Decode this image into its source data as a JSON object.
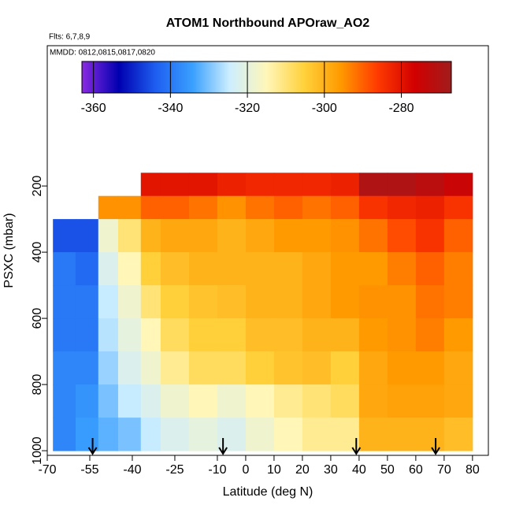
{
  "chart_data": {
    "type": "curtain",
    "title": "ATOM1 Northbound APOraw_AO2",
    "subtitle": "Flts: 6,7,8,9",
    "annotation": "MMDD: 0812,0815,0817,0820",
    "x_label": "Latitude (deg N)",
    "y_label": "PSXC (mbar)",
    "xlim": [
      -70,
      85.6
    ],
    "ylim": [
      1014,
      -224
    ],
    "xticks": [
      -70,
      -55,
      -40,
      -25,
      -10,
      0,
      10,
      20,
      30,
      40,
      50,
      60,
      70,
      80
    ],
    "yticks": [
      200,
      400,
      600,
      800,
      1000
    ],
    "x_edges": [
      -68,
      -60,
      -52,
      -45,
      -37,
      -30,
      -20,
      -10,
      0,
      10,
      20,
      30,
      40,
      50,
      60,
      70,
      80
    ],
    "y_edges": [
      160,
      230,
      300,
      400,
      500,
      600,
      700,
      800,
      900,
      1000
    ],
    "values": [
      [
        null,
        null,
        null,
        null,
        -280,
        -280,
        -280,
        -282,
        -283,
        -283,
        -283,
        -282,
        -270,
        -270,
        -272,
        -275
      ],
      [
        null,
        null,
        -295,
        -295,
        -290,
        -290,
        -292,
        -295,
        -292,
        -290,
        -292,
        -290,
        -285,
        -283,
        -282,
        -285
      ],
      [
        -345,
        -345,
        -318,
        -310,
        -300,
        -298,
        -298,
        -300,
        -298,
        -296,
        -296,
        -295,
        -292,
        -288,
        -285,
        -290
      ],
      [
        -340,
        -342,
        -322,
        -315,
        -305,
        -302,
        -300,
        -300,
        -300,
        -300,
        -298,
        -296,
        -296,
        -293,
        -290,
        -293
      ],
      [
        -340,
        -340,
        -325,
        -318,
        -310,
        -305,
        -303,
        -302,
        -300,
        -300,
        -298,
        -296,
        -295,
        -295,
        -292,
        -293
      ],
      [
        -340,
        -340,
        -326,
        -320,
        -315,
        -308,
        -305,
        -305,
        -302,
        -302,
        -300,
        -300,
        -296,
        -295,
        -293,
        -296
      ],
      [
        -338,
        -338,
        -328,
        -322,
        -318,
        -312,
        -308,
        -308,
        -305,
        -303,
        -302,
        -305,
        -298,
        -296,
        -296,
        -298
      ],
      [
        -338,
        -336,
        -330,
        -325,
        -322,
        -318,
        -315,
        -318,
        -315,
        -312,
        -310,
        -308,
        -298,
        -297,
        -297,
        -298
      ],
      [
        -338,
        -335,
        -332,
        -330,
        -325,
        -322,
        -320,
        -322,
        -318,
        -315,
        -312,
        -312,
        -300,
        -300,
        -300,
        -302
      ]
    ],
    "arrows": [
      -54,
      -8,
      39,
      67
    ],
    "clim": [
      -363,
      -267
    ],
    "cticks": [
      -360,
      -340,
      -320,
      -300,
      -280
    ],
    "colors": [
      "#8a2be2",
      "#0000b0",
      "#1e5ef0",
      "#3aa0ff",
      "#cdeeff",
      "#fff6b8",
      "#ffd23c",
      "#ff9a00",
      "#ff3a00",
      "#d20000",
      "#a01c1c"
    ]
  }
}
